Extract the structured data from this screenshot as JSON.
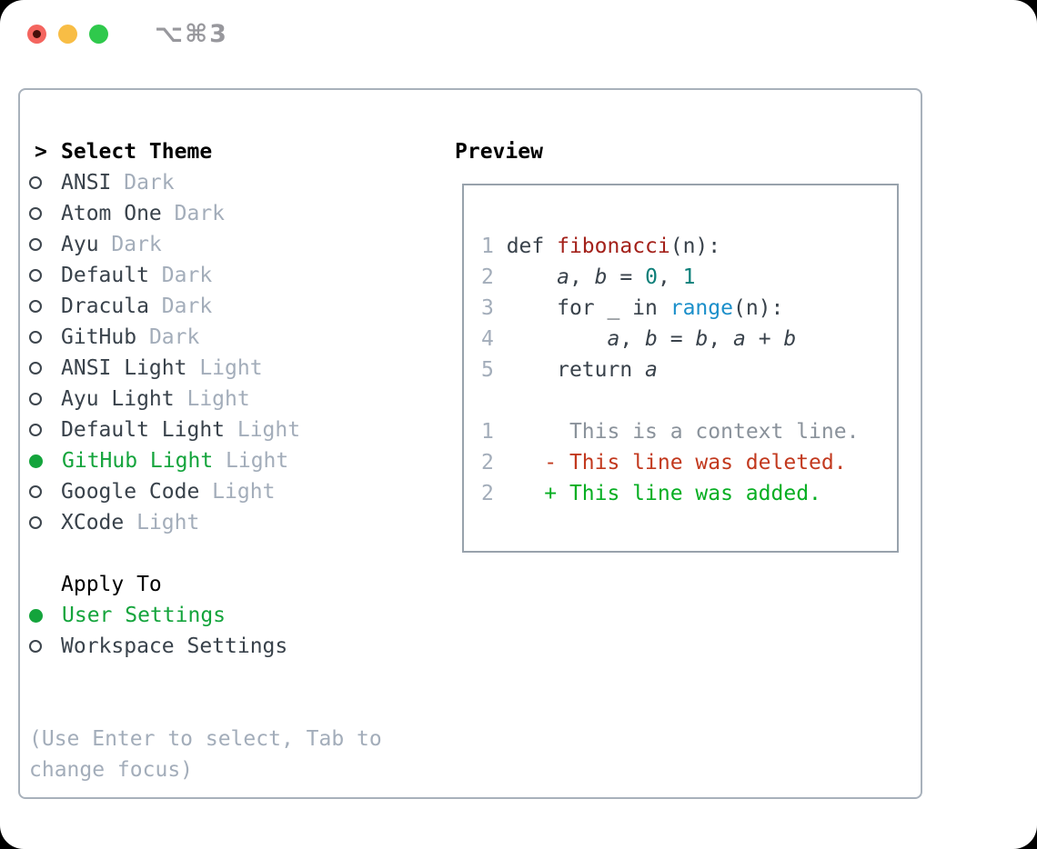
{
  "window": {
    "titlebar": {
      "shortcut_label": "⌥⌘3",
      "traffic_lights": [
        "close",
        "minimize",
        "zoom"
      ]
    }
  },
  "colors": {
    "outside_bg": "#000000",
    "window_bg": "#ffffff",
    "traffic_red": "#f4655f",
    "traffic_red_dot": "#46100b",
    "traffic_yellow": "#f8bd45",
    "traffic_green": "#2fc94c",
    "titlebar_text": "#98989d",
    "panel_border": "#a8b1bb",
    "preview_border": "#98a2ac",
    "text_heading": "#000000",
    "text_primary": "#39424b",
    "text_muted": "#a3adba",
    "radio_outline": "#3d454d",
    "accent_green": "#14a43c",
    "code_default": "#39424b",
    "code_function": "#a3211a",
    "code_number": "#0d7f79",
    "code_builtin": "#1b8fca",
    "line_number": "#a3adba",
    "context_text": "#8a929b",
    "diff_red": "#c2391e",
    "diff_green": "#06ae22"
  },
  "theme_picker": {
    "prompt": ">",
    "title": "Select Theme",
    "themes": [
      {
        "name": "ANSI",
        "variant": "Dark",
        "selected": false
      },
      {
        "name": "Atom One",
        "variant": "Dark",
        "selected": false
      },
      {
        "name": "Ayu",
        "variant": "Dark",
        "selected": false
      },
      {
        "name": "Default",
        "variant": "Dark",
        "selected": false
      },
      {
        "name": "Dracula",
        "variant": "Dark",
        "selected": false
      },
      {
        "name": "GitHub",
        "variant": "Dark",
        "selected": false
      },
      {
        "name": "ANSI Light",
        "variant": "Light",
        "selected": false
      },
      {
        "name": "Ayu Light",
        "variant": "Light",
        "selected": false
      },
      {
        "name": "Default Light",
        "variant": "Light",
        "selected": false
      },
      {
        "name": "GitHub Light",
        "variant": "Light",
        "selected": true
      },
      {
        "name": "Google Code",
        "variant": "Light",
        "selected": false
      },
      {
        "name": "XCode",
        "variant": "Light",
        "selected": false
      }
    ],
    "apply_to": {
      "title": "Apply To",
      "options": [
        {
          "label": "User Settings",
          "selected": true
        },
        {
          "label": "Workspace Settings",
          "selected": false
        }
      ]
    },
    "hint_lines": [
      "(Use Enter to select, Tab to",
      "change focus)"
    ]
  },
  "preview": {
    "title": "Preview",
    "lines": [
      {
        "segments": [
          {
            "text": "1",
            "style": "num"
          },
          {
            "text": " def ",
            "style": "code"
          },
          {
            "text": "fibonacci",
            "style": "func"
          },
          {
            "text": "(n):",
            "style": "code"
          }
        ]
      },
      {
        "segments": [
          {
            "text": "2",
            "style": "num"
          },
          {
            "text": "     ",
            "style": "code"
          },
          {
            "text": "a",
            "style": "var"
          },
          {
            "text": ", ",
            "style": "code"
          },
          {
            "text": "b",
            "style": "var"
          },
          {
            "text": " = ",
            "style": "code"
          },
          {
            "text": "0",
            "style": "lit"
          },
          {
            "text": ", ",
            "style": "code"
          },
          {
            "text": "1",
            "style": "lit"
          }
        ]
      },
      {
        "segments": [
          {
            "text": "3",
            "style": "num"
          },
          {
            "text": "     for _ in ",
            "style": "code"
          },
          {
            "text": "range",
            "style": "builtin"
          },
          {
            "text": "(n):",
            "style": "code"
          }
        ]
      },
      {
        "segments": [
          {
            "text": "4",
            "style": "num"
          },
          {
            "text": "         ",
            "style": "code"
          },
          {
            "text": "a",
            "style": "var"
          },
          {
            "text": ", ",
            "style": "code"
          },
          {
            "text": "b",
            "style": "var"
          },
          {
            "text": " = ",
            "style": "code"
          },
          {
            "text": "b",
            "style": "var"
          },
          {
            "text": ", ",
            "style": "code"
          },
          {
            "text": "a",
            "style": "var"
          },
          {
            "text": " + ",
            "style": "code"
          },
          {
            "text": "b",
            "style": "var"
          }
        ]
      },
      {
        "segments": [
          {
            "text": "5",
            "style": "num"
          },
          {
            "text": "     return ",
            "style": "code"
          },
          {
            "text": "a",
            "style": "var"
          }
        ]
      },
      {
        "segments": []
      },
      {
        "segments": [
          {
            "text": "1",
            "style": "num"
          },
          {
            "text": "      ",
            "style": "code"
          },
          {
            "text": "This is a context line.",
            "style": "ctx"
          }
        ]
      },
      {
        "segments": [
          {
            "text": "2",
            "style": "num"
          },
          {
            "text": "    ",
            "style": "code"
          },
          {
            "text": "- This line was deleted.",
            "style": "del"
          }
        ]
      },
      {
        "segments": [
          {
            "text": "2",
            "style": "num"
          },
          {
            "text": "    ",
            "style": "code"
          },
          {
            "text": "+ This line was added.",
            "style": "add"
          }
        ]
      }
    ]
  }
}
